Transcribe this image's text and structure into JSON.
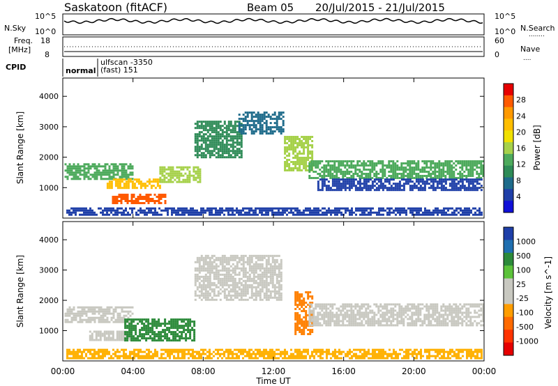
{
  "header": {
    "station": "Saskatoon (fitACF)",
    "beam": "Beam 05",
    "date_range": "20/Jul/2015 - 21/Jul/2015"
  },
  "noise_panel": {
    "left_label": "N.Sky",
    "right_label": "N.Search",
    "right_legend_line": "........",
    "left_ticks": [
      "10^5",
      "10^0"
    ],
    "right_ticks": [
      "10^5",
      "10^0"
    ]
  },
  "freq_panel": {
    "left_label_line1": "Freq.",
    "left_label_line2": "[MHz]",
    "right_label": "Nave",
    "right_legend_line": "....",
    "left_ticks": [
      "18",
      "8"
    ],
    "right_ticks": [
      "60",
      "0"
    ]
  },
  "cpid_panel": {
    "label": "CPID",
    "segments": [
      {
        "text": "normal",
        "x_hour": 0.0
      },
      {
        "text": "ulfscan -3350",
        "x_hour": 2.05
      },
      {
        "text": "(fast) 151",
        "x_hour": 2.05
      }
    ]
  },
  "x_axis": {
    "label": "Time UT",
    "ticks": [
      "00:00",
      "04:00",
      "08:00",
      "12:00",
      "16:00",
      "20:00",
      "00:00"
    ]
  },
  "chart_data": [
    {
      "type": "heatmap",
      "title": "",
      "ylabel": "Slant Range [km]",
      "xlabel": "",
      "xlim_hours": [
        0,
        24
      ],
      "ylim": [
        0,
        4600
      ],
      "yticks": [
        1000,
        2000,
        3000,
        4000
      ],
      "colorbar": {
        "label": "Power [dB]",
        "ticks": [
          "28",
          "24",
          "20",
          "16",
          "12",
          "8",
          "4"
        ],
        "colors": [
          "#e60000",
          "#ff5a00",
          "#ff9900",
          "#ffbe00",
          "#f0e000",
          "#a6d14a",
          "#4daa5c",
          "#2e8b57",
          "#1e6b8a",
          "#1f3fa8",
          "#1010d8"
        ]
      },
      "echo_regions": [
        {
          "t0": 0.1,
          "t1": 4.0,
          "r0": 1300,
          "r1": 1800,
          "level": 14
        },
        {
          "t0": 2.5,
          "t1": 5.5,
          "r0": 1000,
          "r1": 1300,
          "level": 22
        },
        {
          "t0": 2.8,
          "t1": 5.8,
          "r0": 500,
          "r1": 800,
          "level": 27
        },
        {
          "t0": 5.5,
          "t1": 7.8,
          "r0": 1200,
          "r1": 1700,
          "level": 16
        },
        {
          "t0": 7.5,
          "t1": 10.2,
          "r0": 2000,
          "r1": 3200,
          "level": 10
        },
        {
          "t0": 10.0,
          "t1": 12.6,
          "r0": 2800,
          "r1": 3500,
          "level": 7
        },
        {
          "t0": 12.6,
          "t1": 14.2,
          "r0": 1600,
          "r1": 2700,
          "level": 16
        },
        {
          "t0": 14.0,
          "t1": 23.9,
          "r0": 1300,
          "r1": 1900,
          "level": 13
        },
        {
          "t0": 14.5,
          "t1": 23.8,
          "r0": 900,
          "r1": 1300,
          "level": 5
        },
        {
          "t0": 0.2,
          "t1": 23.9,
          "r0": 120,
          "r1": 350,
          "level": 6
        }
      ]
    },
    {
      "type": "heatmap",
      "title": "",
      "ylabel": "Slant Range [km]",
      "xlabel": "Time UT",
      "xlim_hours": [
        0,
        24
      ],
      "ylim": [
        0,
        4600
      ],
      "yticks": [
        1000,
        2000,
        3000,
        4000
      ],
      "colorbar": {
        "label": "Velocity [m s^-1]",
        "ticks": [
          "1000",
          "500",
          "100",
          "25",
          "-25",
          "-100",
          "-500",
          "-1000"
        ],
        "colors": [
          "#1e3fa8",
          "#1f6fb0",
          "#2c8a3a",
          "#5cc23a",
          "#c8c8c0",
          "#c8c8c0",
          "#ff9d00",
          "#ff6a00",
          "#ff3300",
          "#e60000"
        ]
      },
      "echo_regions": [
        {
          "t0": 0.1,
          "t1": 4.0,
          "r0": 1300,
          "r1": 1800,
          "velocity": 0
        },
        {
          "t0": 1.5,
          "t1": 3.8,
          "r0": 700,
          "r1": 1000,
          "velocity": 0
        },
        {
          "t0": 3.5,
          "t1": 7.5,
          "r0": 700,
          "r1": 1400,
          "velocity": 200
        },
        {
          "t0": 7.5,
          "t1": 12.5,
          "r0": 2000,
          "r1": 3500,
          "velocity": 0
        },
        {
          "t0": 13.2,
          "t1": 14.2,
          "r0": 900,
          "r1": 2300,
          "velocity": -200
        },
        {
          "t0": 14.0,
          "t1": 23.9,
          "r0": 1200,
          "r1": 1900,
          "velocity": 0
        },
        {
          "t0": 0.2,
          "t1": 23.9,
          "r0": 120,
          "r1": 400,
          "velocity": -60
        }
      ]
    }
  ]
}
